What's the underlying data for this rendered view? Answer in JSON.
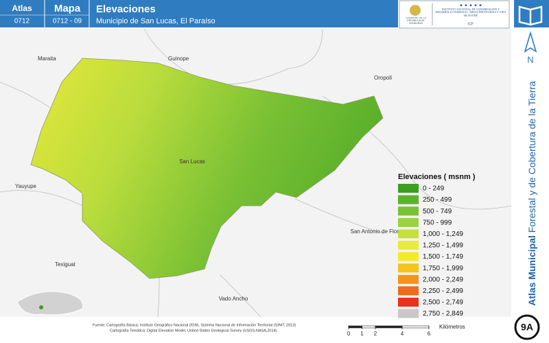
{
  "header": {
    "atlas_label": "Atlas",
    "atlas_code": "0712",
    "map_label": "Mapa",
    "map_code": "0712 - 09",
    "title": "Elevaciones",
    "subtitle": "Municipio de San Lucas, El Paraíso",
    "logo_left": "GOBIERNO DE LA REPÚBLICA DE HONDURAS",
    "logo_right": "INSTITUTO NACIONAL DE CONSERVACIÓN Y DESARROLLO FORESTAL, ÁREAS PROTEGIDAS Y VIDA SILVESTRE",
    "logo_acronym": "ICF"
  },
  "sidebar": {
    "north": "N",
    "atlas_bold": "Atlas Municipal",
    "atlas_rest": "Forestal y de Cobertura de la Tierra",
    "sheet": "9A"
  },
  "places": [
    "Maraita",
    "Guinope",
    "Oropolí",
    "Yauyupe",
    "San Lucas",
    "San Antonio de Flores",
    "Texiguat",
    "Vado Ancho"
  ],
  "legend": {
    "title": "Elevaciones ( msnm )",
    "items": [
      {
        "label": "0 - 249",
        "color": "#3e9e1f"
      },
      {
        "label": "250 - 499",
        "color": "#5bb22a"
      },
      {
        "label": "500 - 749",
        "color": "#79c235"
      },
      {
        "label": "750 - 999",
        "color": "#9cd23d"
      },
      {
        "label": "1,000 - 1,249",
        "color": "#c4e03f"
      },
      {
        "label": "1,250 - 1,499",
        "color": "#e8eb3a"
      },
      {
        "label": "1,500 - 1,749",
        "color": "#f6e92a"
      },
      {
        "label": "1,750 - 1,999",
        "color": "#f7c21b"
      },
      {
        "label": "2,000 - 2,249",
        "color": "#f3941a"
      },
      {
        "label": "2,250 - 2,499",
        "color": "#ef6a1c"
      },
      {
        "label": "2,500 - 2,749",
        "color": "#e8321c"
      },
      {
        "label": "2,750 - 2,849",
        "color": "#c8c8c8"
      }
    ]
  },
  "source": {
    "line1": "Fuente: Cartografía Básica: Instituto Geográfico Nacional (IGN), Sistema Nacional de Información Territorial (SINIT, 2013)",
    "line2": "Cartografía Temática: Digital Elevation Model, United States Geological Survey (USGS-NASA,2014)"
  },
  "scale_bar": {
    "ticks": [
      0,
      1,
      2,
      4,
      6
    ],
    "unit": "Kilómetros"
  }
}
